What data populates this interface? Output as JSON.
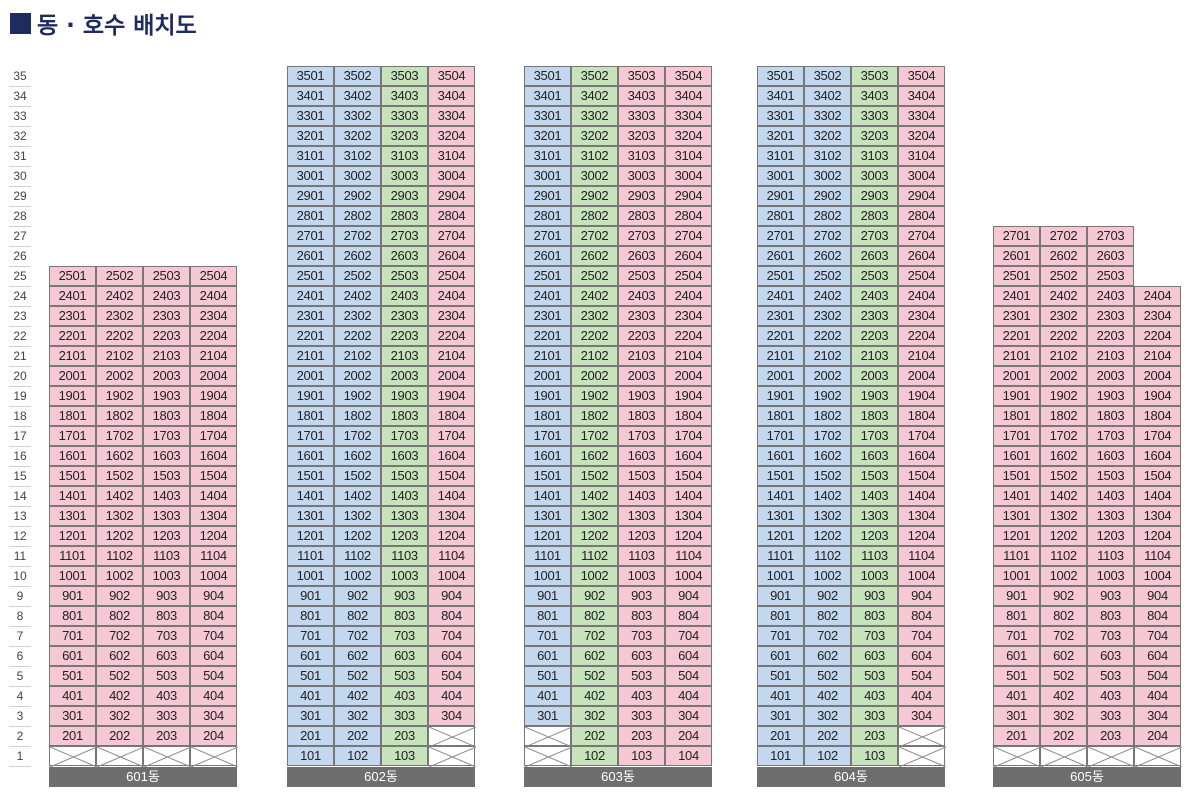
{
  "title": "동 · 호수 배치도",
  "floors": [
    "35",
    "34",
    "33",
    "32",
    "31",
    "30",
    "29",
    "28",
    "27",
    "26",
    "25",
    "24",
    "23",
    "22",
    "21",
    "20",
    "19",
    "18",
    "17",
    "16",
    "15",
    "14",
    "13",
    "12",
    "11",
    "10",
    "9",
    "8",
    "7",
    "6",
    "5",
    "4",
    "3",
    "2",
    "1"
  ],
  "colors": {
    "pink": "#f5c8d3",
    "blue": "#c3d7ee",
    "green": "#c6e3bc",
    "bar": "#6e6e6e",
    "title": "#1d2b5e"
  },
  "buildings": [
    {
      "name": "601동",
      "columns": [
        {
          "line": "01",
          "top": 25,
          "pink": [
            1,
            35
          ],
          "empty": [
            1
          ]
        },
        {
          "line": "02",
          "top": 25,
          "pink": [
            1,
            35
          ],
          "empty": [
            1
          ]
        },
        {
          "line": "03",
          "top": 25,
          "pink": [
            1,
            35
          ],
          "empty": [
            1
          ]
        },
        {
          "line": "04",
          "top": 25,
          "pink": [
            1,
            35
          ],
          "empty": [
            1
          ]
        }
      ]
    },
    {
      "name": "602동",
      "columns": [
        {
          "line": "01",
          "top": 35,
          "blue": [
            1,
            35
          ],
          "empty": []
        },
        {
          "line": "02",
          "top": 35,
          "blue": [
            1,
            35
          ],
          "empty": []
        },
        {
          "line": "03",
          "top": 35,
          "green": [
            1,
            35
          ],
          "empty": []
        },
        {
          "line": "04",
          "top": 35,
          "pink": [
            1,
            35
          ],
          "empty": [
            1,
            2
          ]
        }
      ]
    },
    {
      "name": "603동",
      "columns": [
        {
          "line": "01",
          "top": 35,
          "blue": [
            3,
            35
          ],
          "empty": [
            1,
            2
          ]
        },
        {
          "line": "02",
          "top": 35,
          "green": [
            1,
            35
          ],
          "empty": []
        },
        {
          "line": "03",
          "top": 35,
          "pink": [
            1,
            35
          ],
          "empty": []
        },
        {
          "line": "04",
          "top": 35,
          "pink": [
            1,
            35
          ],
          "empty": []
        }
      ]
    },
    {
      "name": "604동",
      "columns": [
        {
          "line": "01",
          "top": 35,
          "blue": [
            1,
            35
          ],
          "empty": []
        },
        {
          "line": "02",
          "top": 35,
          "blue": [
            1,
            35
          ],
          "empty": []
        },
        {
          "line": "03",
          "top": 35,
          "green": [
            1,
            35
          ],
          "empty": []
        },
        {
          "line": "04",
          "top": 35,
          "pink": [
            1,
            35
          ],
          "empty": [
            1,
            2
          ]
        }
      ]
    },
    {
      "name": "605동",
      "columns": [
        {
          "line": "01",
          "top": 27,
          "pink": [
            1,
            35
          ],
          "empty": [
            1
          ]
        },
        {
          "line": "02",
          "top": 27,
          "pink": [
            1,
            35
          ],
          "empty": [
            1
          ]
        },
        {
          "line": "03",
          "top": 27,
          "pink": [
            1,
            35
          ],
          "empty": [
            1
          ]
        },
        {
          "line": "04",
          "top": 24,
          "pink": [
            1,
            35
          ],
          "empty": [
            1
          ]
        }
      ]
    }
  ]
}
